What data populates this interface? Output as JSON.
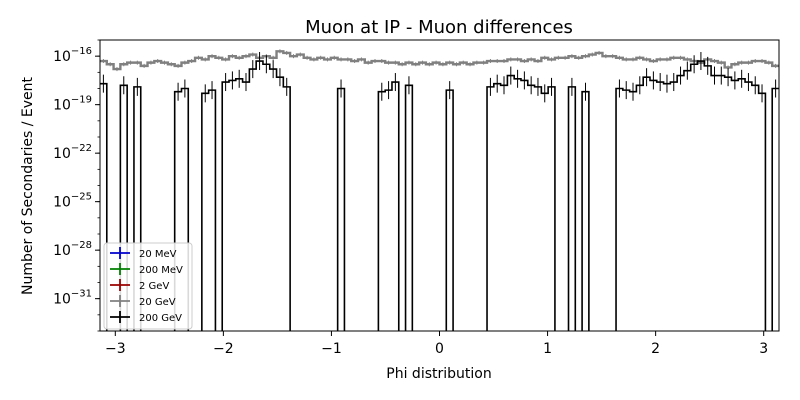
{
  "chart_data": {
    "type": "line",
    "title": "Muon at IP - Muon differences",
    "xlabel": "Phi distribution",
    "ylabel": "Number of Secondaries / Event",
    "xlim": [
      -3.1416,
      3.1416
    ],
    "ylim_log10": [
      -33,
      -15
    ],
    "x_ticks": [
      {
        "value": -3,
        "label": "−3"
      },
      {
        "value": -2,
        "label": "−2"
      },
      {
        "value": -1,
        "label": "−1"
      },
      {
        "value": 0,
        "label": "0"
      },
      {
        "value": 1,
        "label": "1"
      },
      {
        "value": 2,
        "label": "2"
      },
      {
        "value": 3,
        "label": "3"
      }
    ],
    "y_ticks": [
      {
        "exp": -16,
        "base": "10",
        "sup": "−16"
      },
      {
        "exp": -19,
        "base": "10",
        "sup": "−19"
      },
      {
        "exp": -22,
        "base": "10",
        "sup": "−22"
      },
      {
        "exp": -25,
        "base": "10",
        "sup": "−25"
      },
      {
        "exp": -28,
        "base": "10",
        "sup": "−28"
      },
      {
        "exp": -31,
        "base": "10",
        "sup": "−31"
      }
    ],
    "grid": false,
    "legend_position": "lower-left",
    "legend": [
      {
        "name": "20 MeV",
        "color": "#0000cc"
      },
      {
        "name": "200 MeV",
        "color": "#008000"
      },
      {
        "name": "2 GeV",
        "color": "#990000"
      },
      {
        "name": "20 GeV",
        "color": "#808080"
      },
      {
        "name": "200 GeV",
        "color": "#000000"
      }
    ],
    "bins": 100,
    "series": [
      {
        "name": "20 GeV",
        "color": "#808080",
        "log10_values": [
          -16.3,
          -16.5,
          -16.8,
          -16.5,
          -16.4,
          -16.4,
          -16.6,
          -16.4,
          -16.3,
          -16.4,
          -16.5,
          -16.6,
          -16.4,
          -16.3,
          -16.1,
          -16.2,
          -16.0,
          -16.1,
          -16.2,
          -16.0,
          -16.1,
          -16.0,
          -15.9,
          -16.1,
          -16.0,
          -16.1,
          -15.7,
          -15.8,
          -16.0,
          -15.9,
          -16.1,
          -16.2,
          -16.1,
          -16.2,
          -16.1,
          -16.2,
          -16.2,
          -16.3,
          -16.2,
          -16.4,
          -16.3,
          -16.3,
          -16.4,
          -16.4,
          -16.5,
          -16.4,
          -16.5,
          -16.4,
          -16.5,
          -16.4,
          -16.5,
          -16.4,
          -16.5,
          -16.4,
          -16.5,
          -16.4,
          -16.4,
          -16.3,
          -16.3,
          -16.3,
          -16.2,
          -16.2,
          -16.3,
          -16.2,
          -16.3,
          -16.1,
          -16.2,
          -16.1,
          -16.1,
          -16.0,
          -16.1,
          -16.0,
          -15.9,
          -15.8,
          -16.0,
          -16.0,
          -16.1,
          -16.2,
          -16.2,
          -16.1,
          -16.2,
          -16.3,
          -16.2,
          -16.2,
          -16.1,
          -16.1,
          -16.2,
          -16.3,
          -16.4,
          -16.2,
          -16.3,
          -16.4,
          -16.7,
          -16.5,
          -16.4,
          -16.4,
          -16.3,
          -16.3,
          -16.4,
          -16.6
        ],
        "error_bars": false
      },
      {
        "name": "200 GeV",
        "color": "#000000",
        "log10_values": [
          -17.7,
          -33,
          -33,
          -17.8,
          -33,
          -17.9,
          -33,
          -33,
          -33,
          -33,
          -33,
          -18.2,
          -18.0,
          -33,
          -33,
          -18.3,
          -18.1,
          -33,
          -17.6,
          -17.5,
          -17.4,
          -17.6,
          -16.8,
          -16.3,
          -16.5,
          -16.8,
          -17.3,
          -17.9,
          -33,
          -33,
          -33,
          -33,
          -33,
          -33,
          -33,
          -18.0,
          -33,
          -33,
          -33,
          -33,
          -33,
          -18.2,
          -18.1,
          -17.6,
          -33,
          -17.8,
          -33,
          -33,
          -33,
          -33,
          -33,
          -18.1,
          -33,
          -33,
          -33,
          -33,
          -33,
          -17.9,
          -17.7,
          -17.8,
          -17.2,
          -17.4,
          -17.5,
          -17.8,
          -17.9,
          -18.3,
          -17.9,
          -33,
          -33,
          -17.9,
          -33,
          -18.2,
          -33,
          -33,
          -33,
          -33,
          -18.0,
          -18.1,
          -18.2,
          -17.8,
          -17.3,
          -17.5,
          -17.6,
          -17.7,
          -17.6,
          -17.2,
          -16.9,
          -16.5,
          -16.3,
          -16.6,
          -17.2,
          -17.2,
          -17.3,
          -17.5,
          -17.4,
          -17.6,
          -17.8,
          -18.3,
          -33,
          -18.0
        ],
        "error_bars": true
      }
    ]
  }
}
